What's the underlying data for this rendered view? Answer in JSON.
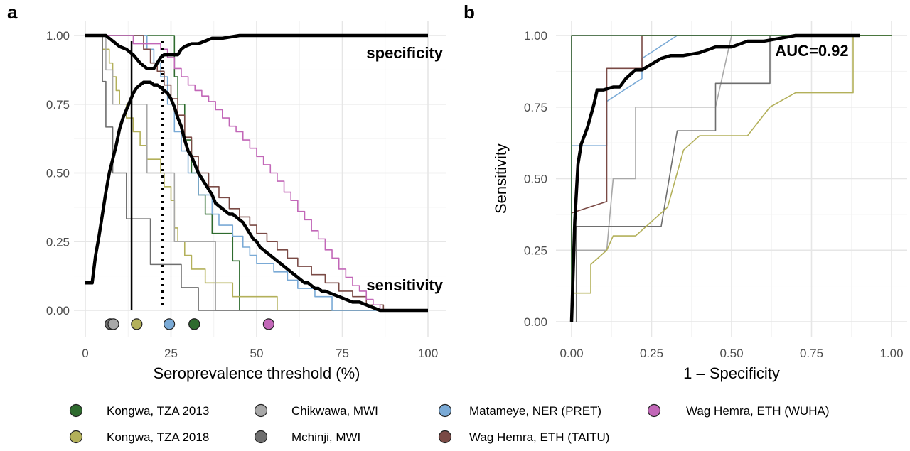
{
  "colors": {
    "kongwa2013": "#2e6b2e",
    "kongwa2018": "#b3b05a",
    "chikwawa": "#a8a8a8",
    "mchinji": "#6e6e6e",
    "matameye": "#7aaad6",
    "taitu": "#7a4a45",
    "wuha": "#c267b8",
    "overall": "#000000"
  },
  "chart_data": [
    {
      "panel": "a",
      "type": "line",
      "xlabel": "Seroprevalence threshold (%)",
      "ylabel": "",
      "xlim": [
        0,
        100
      ],
      "ylim": [
        -0.09,
        1.0
      ],
      "xticks": [
        0,
        25,
        50,
        75,
        100
      ],
      "yticks": [
        0.0,
        0.25,
        0.5,
        0.75,
        1.0
      ],
      "xtick_labels": [
        "0",
        "25",
        "50",
        "75",
        "100"
      ],
      "ytick_labels": [
        "0.00",
        "0.25",
        "0.50",
        "0.75",
        "1.00"
      ],
      "grid": true,
      "annotations": [
        {
          "text": "specificity",
          "x": 100,
          "y": 0.92
        },
        {
          "text": "sensitivity",
          "x": 100,
          "y": 0.09
        }
      ],
      "vlines": [
        {
          "x": 13.5,
          "style": "solid"
        },
        {
          "x": 22.5,
          "style": "dotted"
        }
      ],
      "optimal_points": [
        {
          "series": "Mchinji, MWI",
          "x": 7.3,
          "y": -0.05
        },
        {
          "series": "Chikwawa, MWI",
          "x": 8.2,
          "y": -0.05
        },
        {
          "series": "Kongwa, TZA 2018",
          "x": 15.0,
          "y": -0.05
        },
        {
          "series": "Matameye, NER (PRET)",
          "x": 24.5,
          "y": -0.05
        },
        {
          "series": "Wag Hemra, ETH (TAITU)",
          "x": 31.8,
          "y": -0.05
        },
        {
          "series": "Kongwa, TZA 2013",
          "x": 31.8,
          "y": -0.05
        },
        {
          "series": "Wag Hemra, ETH (WUHA)",
          "x": 53.5,
          "y": -0.05
        }
      ],
      "series": [
        {
          "name": "Kongwa, TZA 2013",
          "color_key": "kongwa2013",
          "kind": "step",
          "x": [
            0,
            14,
            26,
            27,
            29,
            31,
            33,
            35,
            37,
            41,
            43,
            45,
            100
          ],
          "y": [
            1.0,
            1.0,
            0.85,
            0.75,
            0.62,
            0.5,
            0.42,
            0.35,
            0.28,
            0.28,
            0.18,
            0.0,
            0.0
          ]
        },
        {
          "name": "Kongwa, TZA 2018",
          "color_key": "kongwa2018",
          "kind": "step",
          "x": [
            0,
            5,
            7,
            8,
            9,
            10,
            11,
            12,
            13,
            14,
            15,
            16,
            17,
            18,
            19,
            20,
            21,
            22,
            23,
            24,
            25,
            26,
            27,
            29,
            31,
            35,
            39,
            43,
            49,
            53,
            56,
            100
          ],
          "y": [
            1.0,
            0.95,
            0.9,
            0.85,
            0.8,
            0.75,
            0.75,
            0.7,
            0.7,
            0.65,
            0.65,
            0.6,
            0.6,
            0.55,
            0.55,
            0.55,
            0.55,
            0.5,
            0.45,
            0.45,
            0.4,
            0.3,
            0.25,
            0.2,
            0.15,
            0.1,
            0.1,
            0.05,
            0.05,
            0.05,
            0.0,
            0.0
          ]
        },
        {
          "name": "Chikwawa, MWI",
          "color_key": "chikwawa",
          "kind": "step",
          "x": [
            0,
            5,
            6,
            8,
            10,
            13,
            18,
            26,
            36,
            38,
            100
          ],
          "y": [
            1.0,
            1.0,
            0.875,
            0.75,
            0.75,
            0.75,
            0.5,
            0.25,
            0.25,
            0.0,
            0.0
          ]
        },
        {
          "name": "Mchinji, MWI",
          "color_key": "mchinji",
          "kind": "step",
          "x": [
            0,
            4,
            5,
            6,
            8,
            12,
            19,
            24,
            28,
            33,
            100
          ],
          "y": [
            1.0,
            1.0,
            0.833,
            0.667,
            0.5,
            0.333,
            0.167,
            0.167,
            0.083,
            0.0,
            0.0
          ]
        },
        {
          "name": "Matameye, NER (PRET)",
          "color_key": "matameye",
          "kind": "step",
          "x": [
            0,
            13,
            18,
            20,
            22,
            24,
            26,
            28,
            30,
            33,
            37,
            39,
            43,
            46,
            48,
            50,
            55,
            59,
            62,
            67,
            72,
            100
          ],
          "y": [
            1.0,
            1.0,
            0.95,
            0.9,
            0.85,
            0.75,
            0.65,
            0.58,
            0.5,
            0.42,
            0.35,
            0.31,
            0.27,
            0.23,
            0.2,
            0.17,
            0.14,
            0.11,
            0.08,
            0.05,
            0.0,
            0.0
          ]
        },
        {
          "name": "Wag Hemra, ETH (TAITU)",
          "color_key": "taitu",
          "kind": "step",
          "x": [
            0,
            15,
            17,
            19,
            21,
            23,
            25,
            27,
            29,
            31,
            33,
            36,
            39,
            42,
            45,
            48,
            50,
            53,
            56,
            59,
            62,
            66,
            70,
            74,
            78,
            82,
            87,
            100
          ],
          "y": [
            1.0,
            1.0,
            0.95,
            0.9,
            0.87,
            0.82,
            0.77,
            0.71,
            0.63,
            0.56,
            0.5,
            0.45,
            0.41,
            0.37,
            0.34,
            0.31,
            0.28,
            0.25,
            0.22,
            0.19,
            0.16,
            0.13,
            0.1,
            0.07,
            0.05,
            0.02,
            0.0,
            0.0
          ]
        },
        {
          "name": "Wag Hemra, ETH (WUHA)",
          "color_key": "wuha",
          "kind": "step",
          "x": [
            0,
            14,
            20,
            22,
            24,
            26,
            28,
            30,
            32,
            34,
            36,
            38,
            40,
            42,
            44,
            46,
            48,
            50,
            52,
            54,
            56,
            58,
            60,
            62,
            64,
            66,
            68,
            70,
            72,
            74,
            76,
            78,
            80,
            82,
            84,
            86,
            100
          ],
          "y": [
            1.0,
            0.97,
            0.97,
            0.95,
            0.92,
            0.88,
            0.85,
            0.82,
            0.8,
            0.78,
            0.76,
            0.73,
            0.7,
            0.67,
            0.65,
            0.62,
            0.59,
            0.56,
            0.53,
            0.5,
            0.47,
            0.43,
            0.4,
            0.36,
            0.33,
            0.29,
            0.26,
            0.22,
            0.19,
            0.15,
            0.12,
            0.09,
            0.07,
            0.04,
            0.02,
            0.0,
            0.0
          ]
        },
        {
          "name": "specificity",
          "color_key": "overall",
          "kind": "line",
          "bold": true,
          "x": [
            0,
            6,
            8,
            10,
            12,
            13,
            14,
            16,
            18,
            20,
            21,
            22,
            23,
            25,
            27,
            28,
            29,
            31,
            33,
            35,
            37,
            40,
            45,
            50,
            60,
            70,
            80,
            90,
            100
          ],
          "y": [
            1.0,
            1.0,
            0.98,
            0.96,
            0.95,
            0.94,
            0.93,
            0.9,
            0.88,
            0.88,
            0.9,
            0.92,
            0.93,
            0.93,
            0.93,
            0.95,
            0.96,
            0.97,
            0.97,
            0.98,
            0.99,
            0.99,
            1.0,
            1.0,
            1.0,
            1.0,
            1.0,
            1.0,
            1.0
          ]
        },
        {
          "name": "sensitivity",
          "color_key": "overall",
          "kind": "line",
          "bold": true,
          "x": [
            0,
            2,
            3,
            4,
            5,
            6,
            7,
            8,
            9,
            10,
            11,
            12,
            13,
            14,
            15,
            16,
            17,
            18,
            19,
            20,
            21,
            22,
            23,
            24,
            25,
            26,
            27,
            28,
            29,
            30,
            31,
            32,
            33,
            34,
            35,
            36,
            37,
            38,
            39,
            40,
            41,
            42,
            43,
            44,
            45,
            46,
            47,
            48,
            49,
            50,
            51,
            52,
            53,
            54,
            55,
            56,
            57,
            58,
            59,
            60,
            61,
            62,
            63,
            64,
            65,
            66,
            67,
            68,
            69,
            70,
            72,
            74,
            76,
            78,
            80,
            82,
            84,
            86,
            88,
            100
          ],
          "y": [
            0.1,
            0.1,
            0.2,
            0.27,
            0.35,
            0.43,
            0.5,
            0.55,
            0.6,
            0.66,
            0.7,
            0.73,
            0.76,
            0.79,
            0.81,
            0.82,
            0.83,
            0.83,
            0.83,
            0.82,
            0.82,
            0.81,
            0.8,
            0.79,
            0.77,
            0.74,
            0.7,
            0.67,
            0.62,
            0.58,
            0.56,
            0.53,
            0.5,
            0.48,
            0.46,
            0.44,
            0.42,
            0.39,
            0.38,
            0.37,
            0.36,
            0.35,
            0.35,
            0.34,
            0.33,
            0.32,
            0.3,
            0.28,
            0.26,
            0.25,
            0.23,
            0.22,
            0.21,
            0.2,
            0.19,
            0.18,
            0.17,
            0.16,
            0.15,
            0.14,
            0.13,
            0.12,
            0.11,
            0.1,
            0.1,
            0.09,
            0.08,
            0.08,
            0.07,
            0.07,
            0.06,
            0.05,
            0.04,
            0.03,
            0.03,
            0.02,
            0.01,
            0.0,
            0.0,
            0.0
          ]
        }
      ]
    },
    {
      "panel": "b",
      "type": "line",
      "xlabel": "1 – Specificity",
      "ylabel": "Sensitivity",
      "xlim": [
        0,
        1
      ],
      "ylim": [
        0,
        1
      ],
      "xticks": [
        0,
        0.25,
        0.5,
        0.75,
        1.0
      ],
      "yticks": [
        0,
        0.25,
        0.5,
        0.75,
        1.0
      ],
      "xtick_labels": [
        "0.00",
        "0.25",
        "0.50",
        "0.75",
        "1.00"
      ],
      "ytick_labels": [
        "0.00",
        "0.25",
        "0.50",
        "0.75",
        "1.00"
      ],
      "grid": true,
      "annotations": [
        {
          "text": "AUC=0.92",
          "x": 0.88,
          "y": 0.955
        }
      ],
      "series": [
        {
          "name": "Wag Hemra, ETH (WUHA)",
          "color_key": "wuha",
          "x": [
            0,
            0,
            0.05,
            0.1,
            0.2,
            1.0
          ],
          "y": [
            0,
            1.0,
            1.0,
            1.0,
            1.0,
            1.0
          ]
        },
        {
          "name": "Matameye, NER (PRET)",
          "color_key": "matameye",
          "x": [
            0,
            0,
            0.11,
            0.11,
            0.22,
            0.22,
            0.33,
            1.0
          ],
          "y": [
            0,
            0.615,
            0.615,
            0.77,
            0.85,
            0.92,
            1.0,
            1.0
          ]
        },
        {
          "name": "Wag Hemra, ETH (TAITU)",
          "color_key": "taitu",
          "x": [
            0,
            0,
            0.11,
            0.11,
            0.22,
            0.22,
            1.0
          ],
          "y": [
            0,
            0.38,
            0.42,
            0.885,
            0.885,
            1.0,
            1.0
          ]
        },
        {
          "name": "Chikwawa, MWI",
          "color_key": "chikwawa",
          "x": [
            0,
            0,
            0.11,
            0.13,
            0.2,
            0.2,
            0.45,
            0.5,
            1.0
          ],
          "y": [
            0,
            0.25,
            0.25,
            0.5,
            0.5,
            0.75,
            0.75,
            1.0,
            1.0
          ]
        },
        {
          "name": "Mchinji, MWI",
          "color_key": "mchinji",
          "x": [
            0.015,
            0.015,
            0.28,
            0.33,
            0.45,
            0.45,
            0.56,
            0.62,
            0.62,
            0.68,
            1.0
          ],
          "y": [
            0,
            0.333,
            0.333,
            0.667,
            0.667,
            0.833,
            0.833,
            0.833,
            1.0,
            1.0,
            1.0
          ]
        },
        {
          "name": "Kongwa, TZA 2018",
          "color_key": "kongwa2018",
          "x": [
            0,
            0,
            0.06,
            0.06,
            0.11,
            0.13,
            0.2,
            0.3,
            0.35,
            0.4,
            0.45,
            0.55,
            0.62,
            0.7,
            0.75,
            0.88,
            0.88,
            1.0
          ],
          "y": [
            0.1,
            0.1,
            0.1,
            0.2,
            0.25,
            0.3,
            0.3,
            0.4,
            0.6,
            0.65,
            0.65,
            0.65,
            0.75,
            0.8,
            0.8,
            0.8,
            1.0,
            1.0
          ]
        },
        {
          "name": "Kongwa, TZA 2013",
          "color_key": "kongwa2013",
          "x": [
            0,
            0,
            0.05,
            1.0
          ],
          "y": [
            0,
            1.0,
            1.0,
            1.0
          ]
        },
        {
          "name": "overall",
          "color_key": "overall",
          "bold": true,
          "x": [
            0,
            0.01,
            0.015,
            0.02,
            0.03,
            0.04,
            0.05,
            0.06,
            0.07,
            0.08,
            0.1,
            0.13,
            0.15,
            0.17,
            0.2,
            0.22,
            0.25,
            0.28,
            0.31,
            0.35,
            0.4,
            0.45,
            0.5,
            0.55,
            0.6,
            0.65,
            0.7,
            0.8,
            0.9
          ],
          "y": [
            0,
            0.35,
            0.45,
            0.55,
            0.62,
            0.65,
            0.68,
            0.72,
            0.76,
            0.81,
            0.81,
            0.82,
            0.82,
            0.85,
            0.88,
            0.88,
            0.9,
            0.92,
            0.93,
            0.93,
            0.94,
            0.96,
            0.96,
            0.98,
            0.98,
            0.99,
            1.0,
            1.0,
            1.0
          ]
        }
      ]
    }
  ],
  "panels": {
    "a_label": "a",
    "b_label": "b"
  },
  "legend": {
    "placement": "bottom",
    "items": [
      {
        "label": "Kongwa, TZA 2013",
        "color_key": "kongwa2013"
      },
      {
        "label": "Chikwawa, MWI",
        "color_key": "chikwawa"
      },
      {
        "label": "Matameye, NER (PRET)",
        "color_key": "matameye"
      },
      {
        "label": "Wag Hemra, ETH (WUHA)",
        "color_key": "wuha"
      },
      {
        "label": "Kongwa, TZA 2018",
        "color_key": "kongwa2018"
      },
      {
        "label": "Mchinji, MWI",
        "color_key": "mchinji"
      },
      {
        "label": "Wag Hemra, ETH (TAITU)",
        "color_key": "taitu"
      }
    ]
  }
}
